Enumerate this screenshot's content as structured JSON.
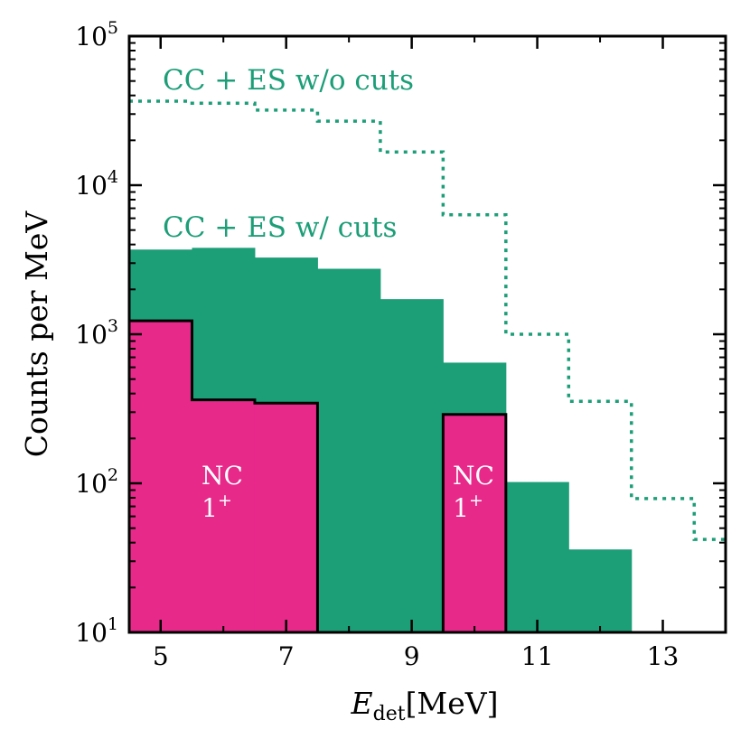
{
  "chart_data": {
    "type": "bar",
    "xlabel_main": "E",
    "xlabel_sub": "det",
    "xlabel_unit": "[MeV]",
    "ylabel": "Counts per MeV",
    "xlim": [
      4.5,
      14
    ],
    "ylim": [
      10,
      100000
    ],
    "yscale": "log",
    "x_ticks": [
      5,
      7,
      9,
      11,
      13
    ],
    "x_tick_labels": [
      "5",
      "7",
      "9",
      "11",
      "13"
    ],
    "x_minor_ticks": [
      6,
      8,
      10,
      12
    ],
    "y_ticks": [
      10,
      100,
      1000,
      10000,
      100000
    ],
    "y_tick_exponents": [
      "1",
      "2",
      "3",
      "4",
      "5"
    ],
    "y_tick_base": "10",
    "bin_edges": [
      4.5,
      5.5,
      6.5,
      7.5,
      8.5,
      9.5,
      10.5,
      11.5,
      12.5,
      13.5,
      14
    ],
    "series": [
      {
        "name": "CC + ES w/o cuts",
        "style": "dotted-step",
        "color": "#1c9e77",
        "values": [
          36600,
          35500,
          31900,
          26900,
          16700,
          6330,
          1000,
          355,
          79,
          42
        ]
      },
      {
        "name": "CC + ES w/ cuts",
        "style": "filled",
        "color": "#1c9e77",
        "values": [
          3700,
          3800,
          3270,
          2750,
          1720,
          645,
          102,
          36,
          0,
          0
        ]
      },
      {
        "name": "NC 1+",
        "style": "filled-outlined",
        "color": "#e7298a",
        "values": [
          1230,
          363,
          345,
          0,
          0,
          290,
          0,
          0,
          0,
          0
        ]
      }
    ],
    "annotations": {
      "wo_cuts": "CC + ES w/o cuts",
      "w_cuts": "CC + ES w/ cuts",
      "nc_line1": "NC",
      "nc_line2_base": "1",
      "nc_line2_sup": "+"
    }
  }
}
